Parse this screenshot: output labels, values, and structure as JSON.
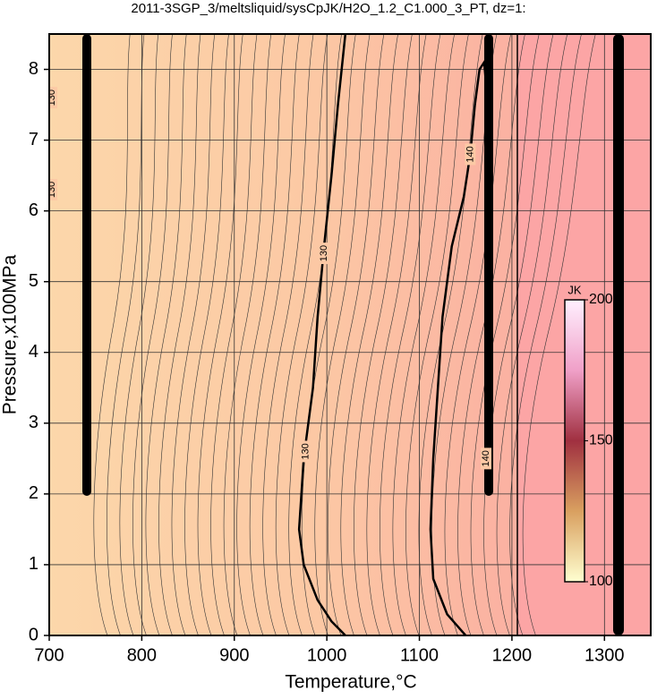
{
  "chart_data": {
    "type": "contour",
    "title": "2011-3SGP_3/meltsliquid/sysCpJK/H2O_1.2_C1.000_3_PT, dz=1:",
    "xlabel": "Temperature,°C",
    "ylabel": "Pressure,x100MPa",
    "xlim": [
      700,
      1350
    ],
    "ylim": [
      0,
      8.5
    ],
    "xticks": [
      700,
      800,
      900,
      1000,
      1100,
      1200,
      1300
    ],
    "yticks": [
      0,
      1,
      2,
      3,
      4,
      5,
      6,
      7,
      8
    ],
    "grid": true,
    "contours": [
      {
        "level": 130,
        "x": [
          1020,
          1005,
          990,
          975,
          970,
          975,
          985,
          990,
          997,
          1005,
          1012,
          1020
        ],
        "y": [
          0,
          0.2,
          0.5,
          1,
          1.5,
          2.5,
          3.5,
          4.5,
          5.5,
          6.5,
          7.5,
          8.5
        ]
      },
      {
        "level": 140,
        "x": [
          1150,
          1130,
          1115,
          1112,
          1115,
          1120,
          1125,
          1135,
          1148,
          1155,
          1160,
          1165,
          1170,
          1172
        ],
        "y": [
          0,
          0.3,
          0.8,
          1.5,
          2.5,
          3.5,
          4.5,
          5.5,
          6.2,
          6.8,
          7.5,
          8,
          8.1,
          7.8
        ]
      }
    ],
    "contour_labels": [
      {
        "level": 130,
        "x": 703,
        "y": 7.6
      },
      {
        "level": 130,
        "x": 703,
        "y": 6.3
      },
      {
        "level": 130,
        "x": 997,
        "y": 5.4
      },
      {
        "level": 130,
        "x": 977,
        "y": 2.6
      },
      {
        "level": 140,
        "x": 1155,
        "y": 6.8
      },
      {
        "level": 140,
        "x": 1172,
        "y": 2.5
      }
    ],
    "colorbar": {
      "label": "JK",
      "lim": [
        100,
        200
      ],
      "ticks": [
        100,
        150,
        200
      ],
      "colors": [
        "#ffffd0",
        "#d9a060",
        "#a03040",
        "#f0a0c8",
        "#fff0ff"
      ]
    }
  }
}
